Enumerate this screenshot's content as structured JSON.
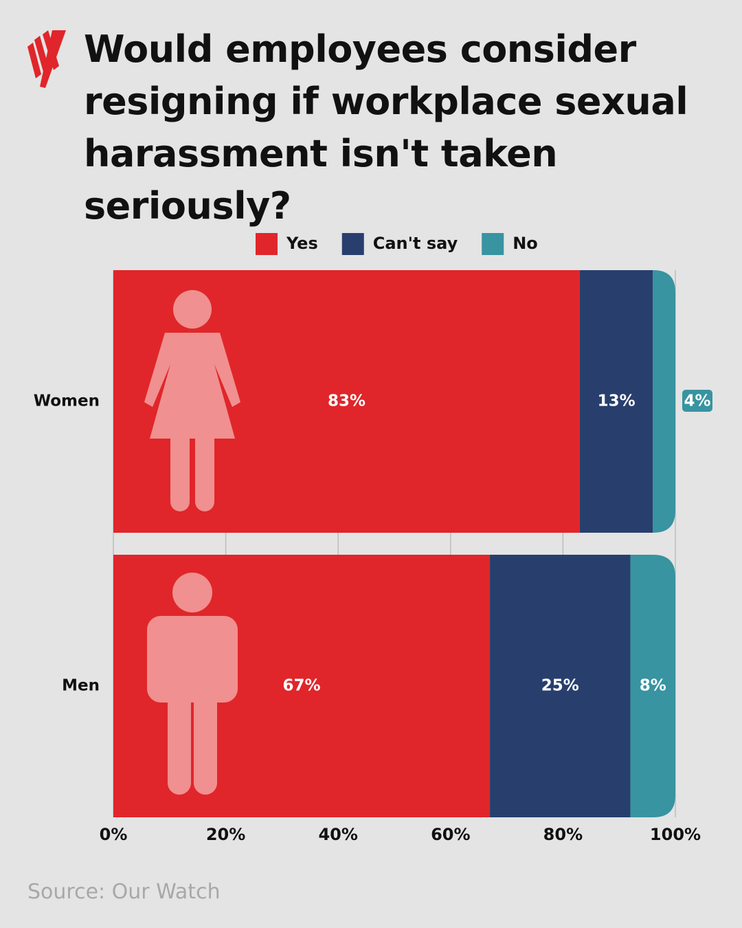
{
  "chart_data": {
    "type": "stacked-barh",
    "title": "Would employees consider resigning if workplace sexual harassment isn't taken seriously?",
    "source": "Source: Our Watch",
    "categories": [
      "Women",
      "Men"
    ],
    "series": [
      {
        "name": "Yes",
        "color": "#e0262a",
        "values": [
          83,
          67
        ],
        "value_labels": [
          "83%",
          "67%"
        ]
      },
      {
        "name": "Can't say",
        "color": "#283f6e",
        "values": [
          13,
          25
        ],
        "value_labels": [
          "13%",
          "25%"
        ]
      },
      {
        "name": "No",
        "color": "#3794a0",
        "values": [
          4,
          8
        ],
        "value_labels": [
          "4%",
          "8%"
        ]
      }
    ],
    "xlim": [
      0,
      100
    ],
    "xticks": [
      {
        "value": 0,
        "label": "0%"
      },
      {
        "value": 20,
        "label": "20%"
      },
      {
        "value": 40,
        "label": "40%"
      },
      {
        "value": 60,
        "label": "60%"
      },
      {
        "value": 80,
        "label": "80%"
      },
      {
        "value": 100,
        "label": "100%"
      }
    ],
    "grid": true
  }
}
